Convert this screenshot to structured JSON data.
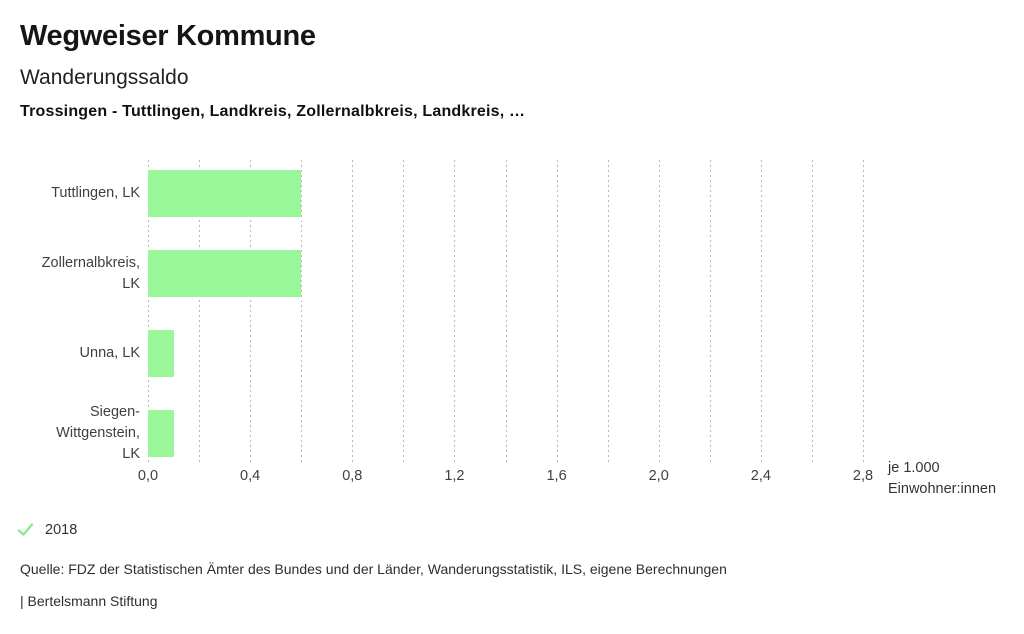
{
  "header": {
    "title": "Wegweiser Kommune",
    "subtitle": "Wanderungssaldo",
    "description": "Trossingen - Tuttlingen, Landkreis, Zollernalbkreis, Landkreis, …"
  },
  "chart_data": {
    "type": "bar",
    "orientation": "horizontal",
    "title": "Wanderungssaldo",
    "categories": [
      {
        "label": "Tuttlingen, LK",
        "lines": [
          "Tuttlingen, LK"
        ]
      },
      {
        "label": "Zollernalbkreis, LK",
        "lines": [
          "Zollernalbkreis,",
          "LK"
        ]
      },
      {
        "label": "Unna, LK",
        "lines": [
          "Unna, LK"
        ]
      },
      {
        "label": "Siegen-Wittgenstein, LK",
        "lines": [
          "Siegen-",
          "Wittgenstein,",
          "LK"
        ]
      }
    ],
    "series": [
      {
        "name": "2018",
        "values": [
          0.6,
          0.6,
          0.1,
          0.1
        ]
      }
    ],
    "xlabel": "je 1.000 Einwohner:innen",
    "unit_label_lines": [
      "je 1.000",
      "Einwohner:innen"
    ],
    "xlim": [
      0,
      2.8
    ],
    "grid_step": 0.2,
    "xticks": [
      {
        "value": 0.0,
        "label": "0,0"
      },
      {
        "value": 0.4,
        "label": "0,4"
      },
      {
        "value": 0.8,
        "label": "0,8"
      },
      {
        "value": 1.2,
        "label": "1,2"
      },
      {
        "value": 1.6,
        "label": "1,6"
      },
      {
        "value": 2.0,
        "label": "2,0"
      },
      {
        "value": 2.4,
        "label": "2,4"
      },
      {
        "value": 2.8,
        "label": "2,8"
      }
    ],
    "grid": "vertical-dotted",
    "legend_position": "bottom-left",
    "bar_color": "#99f699",
    "grid_color": "#b9b9b9",
    "check_color": "#8ee88e"
  },
  "legend": {
    "year": "2018",
    "check_icon": "checkmark-icon"
  },
  "footer": {
    "source": "Quelle: FDZ der Statistischen Ämter des Bundes und der Länder, Wanderungsstatistik, ILS, eigene Berechnungen",
    "attribution": "| Bertelsmann Stiftung"
  }
}
